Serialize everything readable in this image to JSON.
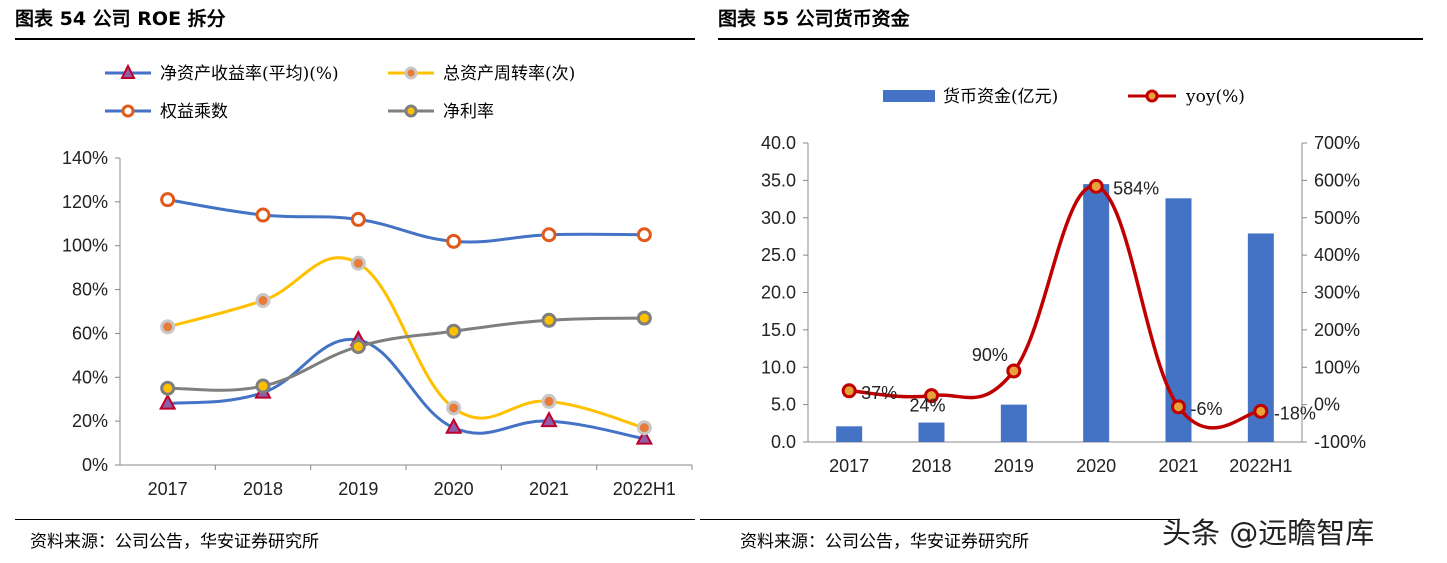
{
  "left": {
    "title": "图表 54 公司 ROE 拆分",
    "source": "资料来源：公司公告，华安证券研究所"
  },
  "right": {
    "title": "图表 55 公司货币资金",
    "source": "资料来源：公司公告，华安证券研究所"
  },
  "watermark": "头条 @远瞻智库",
  "chart_data": [
    {
      "type": "line",
      "categories": [
        "2017",
        "2018",
        "2019",
        "2020",
        "2021",
        "2022H1"
      ],
      "ylim": [
        0,
        140
      ],
      "yticks": [
        "0%",
        "20%",
        "40%",
        "60%",
        "80%",
        "100%",
        "120%",
        "140%"
      ],
      "legend_position": "top",
      "series": [
        {
          "name": "净资产收益率(平均)(%)",
          "values": [
            28,
            33,
            57,
            17,
            20,
            12
          ],
          "color": "#4472C4",
          "marker": "triangle",
          "marker_color": "#C0002A"
        },
        {
          "name": "总资产周转率(次)",
          "values": [
            63,
            75,
            92,
            26,
            29,
            17
          ],
          "color": "#FFC000",
          "marker": "circle",
          "marker_color": "#C8C8C8"
        },
        {
          "name": "权益乘数",
          "values": [
            121,
            114,
            112,
            102,
            105,
            105
          ],
          "color": "#4472C4",
          "marker": "circle",
          "marker_color": "#E05A1C"
        },
        {
          "name": "净利率",
          "values": [
            35,
            36,
            54,
            61,
            66,
            67
          ],
          "color": "#7F7F7F",
          "marker": "circle",
          "marker_color": "#FFC000"
        }
      ]
    },
    {
      "type": "bar",
      "categories": [
        "2017",
        "2018",
        "2019",
        "2020",
        "2021",
        "2022H1"
      ],
      "ylim": [
        0,
        40
      ],
      "yticks": [
        "0.0",
        "5.0",
        "10.0",
        "15.0",
        "20.0",
        "25.0",
        "30.0",
        "35.0",
        "40.0"
      ],
      "y2lim": [
        -100,
        700
      ],
      "y2ticks": [
        "-100%",
        "0%",
        "100%",
        "200%",
        "300%",
        "400%",
        "500%",
        "600%",
        "700%"
      ],
      "legend_position": "top",
      "series": [
        {
          "name": "货币资金(亿元)",
          "type": "bar",
          "values": [
            2.1,
            2.6,
            5.0,
            34.5,
            32.6,
            27.9
          ],
          "color": "#4472C4"
        },
        {
          "name": "yoy(%)",
          "type": "line",
          "axis": "y2",
          "values": [
            37,
            24,
            90,
            584,
            -6,
            -18
          ],
          "labels": [
            "37%",
            "24%",
            "90%",
            "584%",
            "-6%",
            "-18%"
          ],
          "color": "#C00000"
        }
      ]
    }
  ]
}
